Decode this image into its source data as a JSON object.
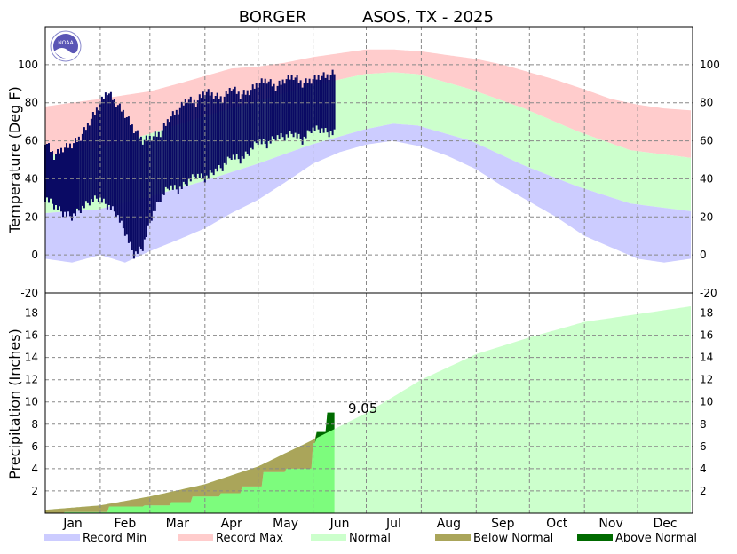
{
  "chart_data": {
    "type": "area",
    "title_station": "BORGER",
    "title_network": "ASOS, TX - 2025",
    "months": [
      "Jan",
      "Feb",
      "Mar",
      "Apr",
      "May",
      "Jun",
      "Jul",
      "Aug",
      "Sep",
      "Oct",
      "Nov",
      "Dec"
    ],
    "temperature": {
      "ylabel": "Temperature (Deg F)",
      "ylim": [
        -20,
        120
      ],
      "ticks": [
        -20,
        0,
        20,
        40,
        60,
        80,
        100
      ],
      "grid": true,
      "series": {
        "record_min": {
          "day": [
            0,
            15,
            31,
            45,
            59,
            75,
            90,
            105,
            120,
            135,
            151,
            166,
            181,
            196,
            212,
            227,
            243,
            258,
            273,
            288,
            304,
            319,
            334,
            349,
            364
          ],
          "value": [
            -2,
            -4,
            0,
            -4,
            2,
            8,
            14,
            22,
            29,
            38,
            48,
            54,
            58,
            60,
            57,
            52,
            45,
            36,
            28,
            20,
            10,
            4,
            -2,
            -4,
            -2
          ]
        },
        "record_max": {
          "day": [
            0,
            15,
            31,
            45,
            59,
            75,
            90,
            105,
            120,
            135,
            151,
            166,
            181,
            196,
            212,
            227,
            243,
            258,
            273,
            288,
            304,
            319,
            334,
            349,
            364
          ],
          "value": [
            78,
            80,
            82,
            84,
            86,
            90,
            94,
            98,
            99,
            101,
            104,
            106,
            108,
            108,
            107,
            105,
            103,
            100,
            96,
            92,
            87,
            82,
            79,
            77,
            76
          ]
        },
        "normal_low": {
          "day": [
            0,
            30,
            60,
            90,
            120,
            150,
            180,
            196,
            210,
            240,
            270,
            300,
            330,
            364
          ],
          "value": [
            22,
            24,
            31,
            39,
            48,
            58,
            66,
            69,
            68,
            60,
            47,
            36,
            27,
            23
          ]
        },
        "normal_high": {
          "day": [
            0,
            30,
            60,
            90,
            120,
            150,
            180,
            196,
            210,
            240,
            270,
            300,
            330,
            364
          ],
          "value": [
            52,
            56,
            64,
            73,
            81,
            89,
            95,
            96,
            95,
            87,
            77,
            65,
            55,
            51
          ]
        },
        "observed": {
          "day": [
            0,
            5,
            10,
            15,
            20,
            25,
            30,
            35,
            40,
            45,
            50,
            55,
            60,
            65,
            70,
            75,
            80,
            85,
            90,
            95,
            100,
            105,
            110,
            115,
            120,
            125,
            130,
            135,
            140,
            145,
            150,
            155,
            160,
            163
          ],
          "high": [
            60,
            52,
            56,
            58,
            62,
            70,
            78,
            86,
            80,
            74,
            66,
            60,
            62,
            64,
            72,
            76,
            82,
            80,
            86,
            84,
            82,
            88,
            84,
            86,
            90,
            92,
            88,
            92,
            94,
            90,
            92,
            94,
            94,
            96
          ],
          "low": [
            30,
            26,
            22,
            20,
            24,
            28,
            30,
            26,
            22,
            12,
            0,
            4,
            20,
            30,
            36,
            34,
            38,
            42,
            40,
            44,
            46,
            52,
            50,
            54,
            60,
            58,
            62,
            62,
            64,
            60,
            66,
            66,
            64,
            64
          ]
        }
      }
    },
    "precipitation": {
      "ylabel": "Precipitation (Inches)",
      "ylim": [
        0,
        19.8
      ],
      "ticks": [
        2,
        4,
        6,
        8,
        10,
        12,
        14,
        16,
        18
      ],
      "grid": true,
      "annotation": "9.05",
      "normal": {
        "day": [
          0,
          31,
          59,
          90,
          120,
          151,
          181,
          212,
          243,
          273,
          304,
          334,
          364
        ],
        "value": [
          0.3,
          0.7,
          1.5,
          2.6,
          4.2,
          6.6,
          9.0,
          12.0,
          14.3,
          15.8,
          17.2,
          17.9,
          18.6
        ]
      },
      "observed": {
        "day": [
          0,
          10,
          11,
          35,
          36,
          55,
          56,
          70,
          71,
          82,
          83,
          98,
          99,
          110,
          111,
          122,
          123,
          135,
          136,
          150,
          151,
          152,
          153,
          158,
          159,
          163
        ],
        "value": [
          0,
          0,
          0.1,
          0.1,
          0.6,
          0.6,
          0.7,
          0.7,
          1.0,
          1.0,
          1.5,
          1.5,
          1.8,
          1.8,
          2.4,
          2.4,
          3.7,
          3.7,
          4.0,
          4.0,
          6.3,
          6.3,
          7.3,
          7.3,
          9.05,
          9.05
        ]
      }
    },
    "legend": [
      {
        "label": "Record Min",
        "color": "#ccccff"
      },
      {
        "label": "Record Max",
        "color": "#ffcccc"
      },
      {
        "label": "Normal",
        "color": "#ccffcc"
      },
      {
        "label": "Below Normal",
        "color": "#aaa55a"
      },
      {
        "label": "Above Normal",
        "color": "#006a00"
      }
    ],
    "colors": {
      "record_min": "#ccccff",
      "record_max": "#ffcccc",
      "normal": "#ccffcc",
      "observed_temp": "#0a0a64",
      "observed_precip": "#7dfc7d",
      "below_normal": "#aaa55a",
      "above_normal": "#006a00"
    },
    "logo_text": "NOAA"
  }
}
